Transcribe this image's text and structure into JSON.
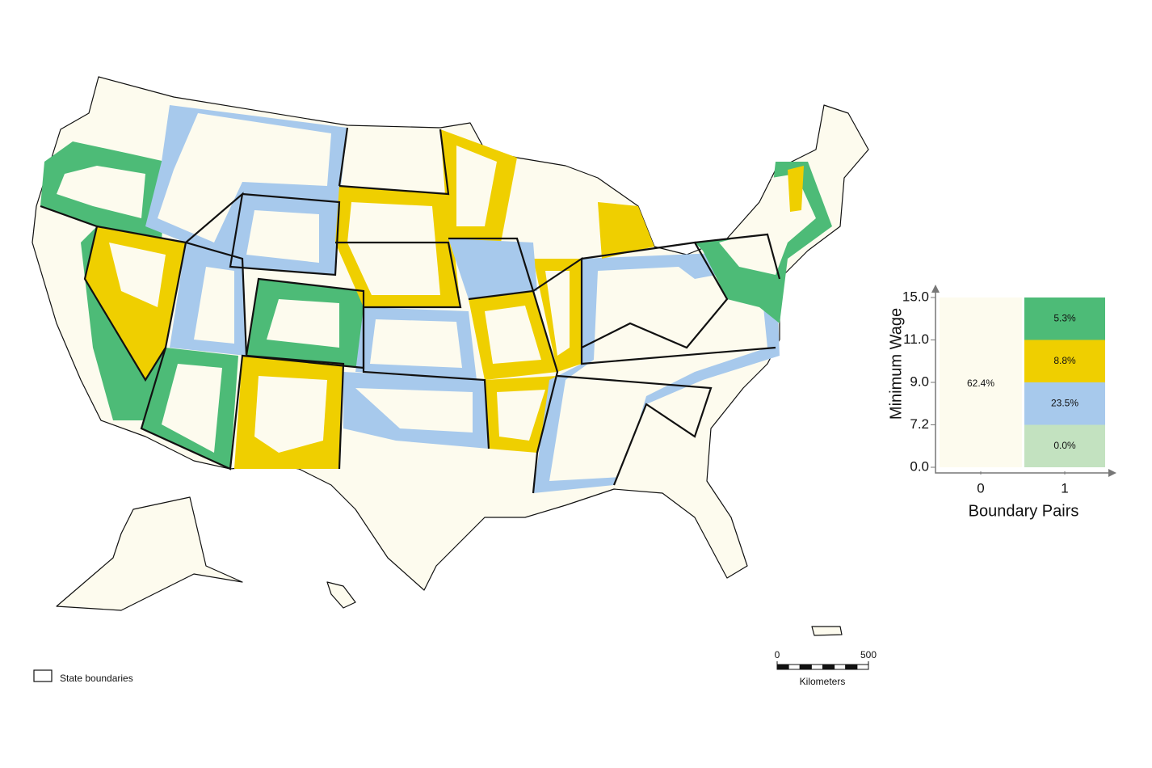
{
  "legend": {
    "y_label": "Minimum Wage",
    "x_label": "Boundary Pairs",
    "yticks": [
      {
        "value": 0,
        "label": "0.0"
      },
      {
        "value": 7.2,
        "label": "7.2"
      },
      {
        "value": 9,
        "label": "9.0"
      },
      {
        "value": 11,
        "label": "11.0"
      },
      {
        "value": 15,
        "label": "15.0"
      }
    ],
    "xticks": [
      0,
      1
    ],
    "cells": [
      {
        "pair": 0,
        "from": 0,
        "to": 15,
        "share": 62.4,
        "label": "62.4%",
        "color": "#fdfbee"
      },
      {
        "pair": 1,
        "from": 0,
        "to": 7.2,
        "share": 0,
        "label": "0.0%",
        "color": "#c3e2c0"
      },
      {
        "pair": 1,
        "from": 7.2,
        "to": 9,
        "share": 23.5,
        "label": "23.5%",
        "color": "#a7c9ec"
      },
      {
        "pair": 1,
        "from": 9,
        "to": 11,
        "share": 8.8,
        "label": "8.8%",
        "color": "#efcf00"
      },
      {
        "pair": 1,
        "from": 11,
        "to": 15,
        "share": 5.3,
        "label": "5.3%",
        "color": "#4dbb77"
      }
    ]
  },
  "map_legend": "State boundaries",
  "scale_bar": {
    "ticks": [
      0,
      500
    ],
    "unit": "Kilometers"
  }
}
